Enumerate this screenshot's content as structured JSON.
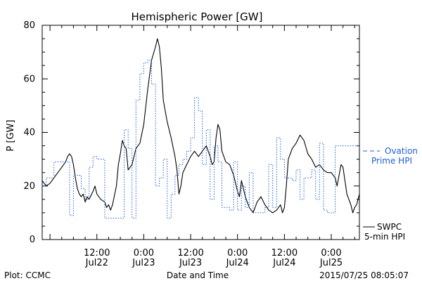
{
  "chart_data": {
    "type": "line",
    "title": "Hemispheric Power [GW]",
    "ylabel": "P [GW]",
    "xlabel": "Date and Time",
    "ylim": [
      0,
      80
    ],
    "xlim": [
      -2.0,
      79.2
    ],
    "x_unit": "hours since 2015-07-22 00:00 UT",
    "yticks": [
      0,
      20,
      40,
      60,
      80
    ],
    "xticks": [
      {
        "x": 12,
        "time": "12:00",
        "date": "Jul22"
      },
      {
        "x": 24,
        "time": "0:00",
        "date": "Jul23"
      },
      {
        "x": 36,
        "time": "12:00",
        "date": "Jul23"
      },
      {
        "x": 48,
        "time": "0:00",
        "date": "Jul24"
      },
      {
        "x": 60,
        "time": "12:00",
        "date": "Jul24"
      },
      {
        "x": 72,
        "time": "0:00",
        "date": "Jul25"
      }
    ],
    "series": [
      {
        "name": "SWPC 5-min HPI",
        "legend_lines": [
          "SWPC",
          "5-min HPI"
        ],
        "color": "#000000",
        "style": "solid",
        "points": [
          [
            -2,
            22
          ],
          [
            -1,
            20
          ],
          [
            0,
            21
          ],
          [
            1,
            23
          ],
          [
            2,
            25
          ],
          [
            3,
            27
          ],
          [
            4,
            29
          ],
          [
            4.5,
            31
          ],
          [
            5,
            32
          ],
          [
            5.5,
            31
          ],
          [
            6,
            28
          ],
          [
            6.5,
            23
          ],
          [
            7,
            19
          ],
          [
            7.5,
            17
          ],
          [
            8,
            16
          ],
          [
            8.5,
            17
          ],
          [
            9,
            14
          ],
          [
            9.5,
            16
          ],
          [
            10,
            15
          ],
          [
            11,
            18
          ],
          [
            11.5,
            20
          ],
          [
            12,
            17
          ],
          [
            13,
            15
          ],
          [
            14,
            14
          ],
          [
            14.5,
            12
          ],
          [
            15,
            13
          ],
          [
            15.5,
            11
          ],
          [
            16,
            13
          ],
          [
            17,
            20
          ],
          [
            17.5,
            28
          ],
          [
            18,
            32
          ],
          [
            18.5,
            37
          ],
          [
            19,
            35
          ],
          [
            19.5,
            34
          ],
          [
            20,
            26
          ],
          [
            21,
            28
          ],
          [
            22,
            34
          ],
          [
            23,
            36
          ],
          [
            24,
            43
          ],
          [
            25,
            56
          ],
          [
            26,
            67
          ],
          [
            27,
            72
          ],
          [
            27.5,
            75
          ],
          [
            28,
            72
          ],
          [
            28.5,
            64
          ],
          [
            29,
            52
          ],
          [
            30,
            44
          ],
          [
            31,
            38
          ],
          [
            32,
            31
          ],
          [
            32.5,
            26
          ],
          [
            33,
            17
          ],
          [
            33.5,
            20
          ],
          [
            34,
            25
          ],
          [
            35,
            28
          ],
          [
            36,
            31
          ],
          [
            37,
            33
          ],
          [
            38,
            31
          ],
          [
            39,
            33
          ],
          [
            40,
            35
          ],
          [
            41,
            31
          ],
          [
            41.5,
            28
          ],
          [
            42,
            29
          ],
          [
            42.5,
            38
          ],
          [
            43,
            43
          ],
          [
            43.5,
            41
          ],
          [
            44,
            33
          ],
          [
            45,
            29
          ],
          [
            46,
            28
          ],
          [
            47,
            24
          ],
          [
            48,
            18
          ],
          [
            48.5,
            16
          ],
          [
            49,
            22
          ],
          [
            50,
            16
          ],
          [
            51,
            12
          ],
          [
            52,
            10
          ],
          [
            53,
            14
          ],
          [
            54,
            16
          ],
          [
            55,
            13
          ],
          [
            56,
            11
          ],
          [
            57,
            10
          ],
          [
            58,
            11
          ],
          [
            59,
            13
          ],
          [
            59.5,
            10
          ],
          [
            60,
            12
          ],
          [
            60.5,
            20
          ],
          [
            61,
            30
          ],
          [
            62,
            34
          ],
          [
            63,
            36
          ],
          [
            64,
            39
          ],
          [
            65,
            37
          ],
          [
            66,
            32
          ],
          [
            67,
            30
          ],
          [
            68,
            27
          ],
          [
            69,
            28
          ],
          [
            70,
            26
          ],
          [
            71,
            25
          ],
          [
            72,
            25
          ],
          [
            73,
            23
          ],
          [
            73.5,
            20
          ],
          [
            74,
            24
          ],
          [
            74.5,
            28
          ],
          [
            75,
            27
          ],
          [
            75.5,
            22
          ],
          [
            76,
            17
          ],
          [
            77,
            13
          ],
          [
            77.5,
            10
          ],
          [
            78,
            12
          ],
          [
            78.5,
            13
          ],
          [
            79.2,
            17
          ]
        ]
      },
      {
        "name": "Ovation Prime HPI",
        "legend_lines": [
          "Ovation",
          "Prime HPI"
        ],
        "color": "#1f5fd0",
        "style": "dotted-step",
        "points": [
          [
            -2,
            20
          ],
          [
            -1,
            23
          ],
          [
            1,
            29
          ],
          [
            5,
            9
          ],
          [
            6,
            24
          ],
          [
            8,
            19
          ],
          [
            9,
            15
          ],
          [
            10,
            27
          ],
          [
            11,
            31
          ],
          [
            12,
            30
          ],
          [
            14,
            8
          ],
          [
            18,
            8
          ],
          [
            19,
            41
          ],
          [
            20,
            34
          ],
          [
            21,
            8
          ],
          [
            22,
            52
          ],
          [
            23,
            62
          ],
          [
            24,
            66
          ],
          [
            25,
            67
          ],
          [
            26,
            58
          ],
          [
            27,
            20
          ],
          [
            28,
            23
          ],
          [
            29,
            30
          ],
          [
            30,
            8
          ],
          [
            31,
            17
          ],
          [
            32,
            24
          ],
          [
            33,
            28
          ],
          [
            34,
            30
          ],
          [
            35,
            33
          ],
          [
            36,
            38
          ],
          [
            37,
            53
          ],
          [
            38,
            48
          ],
          [
            39,
            28
          ],
          [
            40,
            41
          ],
          [
            41,
            15
          ],
          [
            42,
            35
          ],
          [
            43,
            29
          ],
          [
            44,
            12
          ],
          [
            46,
            11
          ],
          [
            47,
            29
          ],
          [
            48,
            11
          ],
          [
            49,
            20
          ],
          [
            50,
            12
          ],
          [
            51,
            25
          ],
          [
            52,
            10
          ],
          [
            53,
            10
          ],
          [
            54,
            10
          ],
          [
            55,
            12
          ],
          [
            56,
            28
          ],
          [
            57,
            12
          ],
          [
            58,
            38
          ],
          [
            59,
            30
          ],
          [
            60,
            23
          ],
          [
            61,
            23
          ],
          [
            62,
            22
          ],
          [
            63,
            26
          ],
          [
            64,
            15
          ],
          [
            65,
            23
          ],
          [
            66,
            23
          ],
          [
            67,
            26
          ],
          [
            68,
            15
          ],
          [
            69,
            36
          ],
          [
            70,
            11
          ],
          [
            71,
            10
          ],
          [
            72,
            10
          ],
          [
            73,
            35
          ],
          [
            79.2,
            35
          ]
        ]
      }
    ]
  },
  "footer": {
    "plot_credit": "Plot: CCMC",
    "axis_caption": "Date and Time",
    "timestamp": "2015/07/25 08:05:07"
  }
}
